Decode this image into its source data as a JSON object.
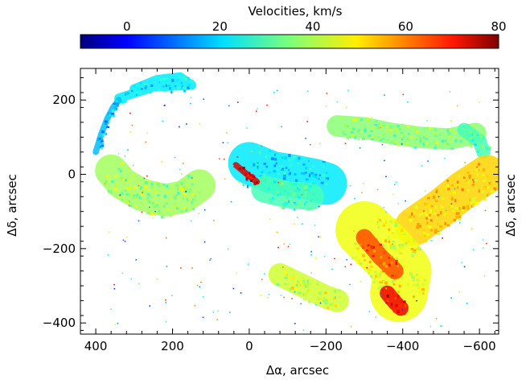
{
  "chart_data": {
    "type": "heatmap",
    "colorbar": {
      "title": "Velocities, km/s",
      "ticks": [
        0,
        20,
        40,
        60,
        80
      ],
      "range": [
        -10,
        80
      ],
      "colormap": "jet"
    },
    "xlabel": "Δα, arcsec",
    "ylabel": "Δδ, arcsec",
    "right_ylabel": "Δδ, arcsec",
    "xlim": [
      440,
      -650
    ],
    "ylim": [
      -430,
      285
    ],
    "x_ticks": [
      400,
      200,
      0,
      -200,
      -400,
      -600
    ],
    "y_ticks": [
      200,
      0,
      -200,
      -400
    ],
    "x_tick_labels": [
      "400",
      "200",
      "0",
      "−200",
      "−400",
      "−600"
    ],
    "y_tick_labels": [
      "200",
      "0",
      "−200",
      "−400"
    ],
    "grid": false,
    "regions": [
      {
        "name": "upper-left arc",
        "points": [
          [
            300,
            230
          ],
          [
            240,
            255
          ],
          [
            180,
            262
          ],
          [
            150,
            240
          ],
          [
            250,
            235
          ],
          [
            340,
            205
          ]
        ],
        "width": 12,
        "velocity": 22
      },
      {
        "name": "left arc lower",
        "points": [
          [
            340,
            200
          ],
          [
            355,
            180
          ],
          [
            370,
            150
          ],
          [
            385,
            110
          ],
          [
            400,
            60
          ]
        ],
        "width": 8,
        "velocity": 18
      },
      {
        "name": "left lobe",
        "points": [
          [
            360,
            10
          ],
          [
            330,
            -25
          ],
          [
            280,
            -55
          ],
          [
            220,
            -70
          ],
          [
            170,
            -60
          ],
          [
            130,
            -30
          ]
        ],
        "width": 42,
        "velocity": 38
      },
      {
        "name": "central blue",
        "points": [
          [
            0,
            30
          ],
          [
            -60,
            5
          ],
          [
            -120,
            -5
          ],
          [
            -170,
            -15
          ],
          [
            -200,
            -25
          ]
        ],
        "width": 55,
        "velocity": 22
      },
      {
        "name": "central green",
        "points": [
          [
            -40,
            -40
          ],
          [
            -100,
            -55
          ],
          [
            -160,
            -60
          ]
        ],
        "width": 35,
        "velocity": 30
      },
      {
        "name": "upper right arc",
        "points": [
          [
            -230,
            130
          ],
          [
            -300,
            125
          ],
          [
            -370,
            110
          ],
          [
            -440,
            100
          ],
          [
            -520,
            95
          ],
          [
            -590,
            110
          ]
        ],
        "width": 28,
        "velocity": 36
      },
      {
        "name": "right arc",
        "points": [
          [
            -560,
            120
          ],
          [
            -600,
            90
          ],
          [
            -610,
            60
          ]
        ],
        "width": 18,
        "velocity": 30
      },
      {
        "name": "right fan",
        "points": [
          [
            -620,
            0
          ],
          [
            -560,
            -40
          ],
          [
            -500,
            -90
          ],
          [
            -430,
            -140
          ]
        ],
        "width": 50,
        "velocity": 50
      },
      {
        "name": "lower right mass",
        "points": [
          [
            -300,
            -150
          ],
          [
            -360,
            -210
          ],
          [
            -400,
            -260
          ],
          [
            -390,
            -320
          ]
        ],
        "width": 75,
        "velocity": 45
      },
      {
        "name": "lower right red",
        "points": [
          [
            -300,
            -170
          ],
          [
            -340,
            -220
          ],
          [
            -380,
            -260
          ]
        ],
        "width": 22,
        "velocity": 62
      },
      {
        "name": "bottom patch",
        "points": [
          [
            -80,
            -270
          ],
          [
            -140,
            -300
          ],
          [
            -200,
            -330
          ],
          [
            -230,
            -340
          ]
        ],
        "width": 30,
        "velocity": 42
      },
      {
        "name": "bottom red",
        "points": [
          [
            -360,
            -320
          ],
          [
            -380,
            -345
          ],
          [
            -395,
            -360
          ]
        ],
        "width": 20,
        "velocity": 70
      },
      {
        "name": "central red streak",
        "points": [
          [
            35,
            25
          ],
          [
            0,
            -5
          ],
          [
            -20,
            -20
          ]
        ],
        "width": 8,
        "velocity": 72
      }
    ]
  }
}
